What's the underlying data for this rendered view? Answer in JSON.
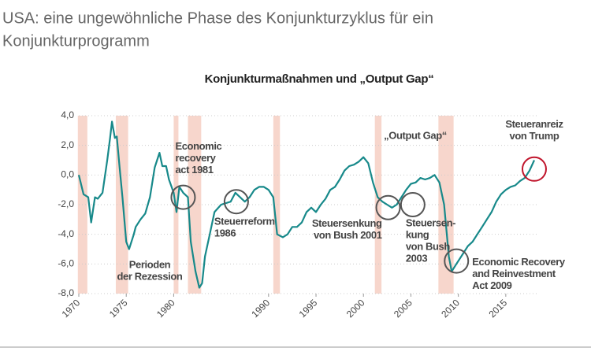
{
  "header": {
    "title": [
      "USA: eine ungewöhnliche Phase des Konjunkturzyklus für ein",
      "Konjunkturprogramm"
    ]
  },
  "chart_data": {
    "type": "line",
    "title": "Konjunkturmaßnahmen und „Output Gap“",
    "color": "#17898a",
    "x": [
      1970.0,
      1970.5,
      1971.0,
      1971.3,
      1971.7,
      1972.0,
      1972.5,
      1973.0,
      1973.3,
      1973.5,
      1973.8,
      1974.0,
      1974.3,
      1974.6,
      1975.0,
      1975.3,
      1975.8,
      1976.0,
      1976.5,
      1977.0,
      1977.5,
      1978.0,
      1978.5,
      1978.8,
      1979.2,
      1979.5,
      1980.0,
      1980.3,
      1980.6,
      1981.0,
      1981.5,
      1981.8,
      1982.3,
      1982.7,
      1983.0,
      1983.3,
      1983.8,
      1984.3,
      1985.0,
      1986.0,
      1986.5,
      1987.0,
      1987.5,
      1988.0,
      1988.5,
      1989.0,
      1989.5,
      1990.0,
      1990.5,
      1990.9,
      1991.5,
      1992.0,
      1992.5,
      1993.0,
      1993.5,
      1994.0,
      1994.5,
      1995.0,
      1995.5,
      1996.0,
      1996.5,
      1997.0,
      1997.5,
      1998.0,
      1998.5,
      1999.0,
      1999.5,
      2000.0,
      2000.5,
      2001.0,
      2001.5,
      2002.0,
      2002.5,
      2003.0,
      2003.5,
      2004.0,
      2004.5,
      2005.0,
      2005.5,
      2006.0,
      2006.5,
      2007.0,
      2007.5,
      2008.0,
      2008.5,
      2009.0,
      2009.3,
      2009.8,
      2010.5,
      2011.0,
      2011.5,
      2012.0,
      2012.5,
      2013.0,
      2013.5,
      2014.0,
      2014.5,
      2015.0,
      2015.5,
      2016.0,
      2016.5,
      2017.0,
      2017.5,
      2018.0
    ],
    "values": [
      0.0,
      -1.3,
      -1.5,
      -3.2,
      -1.5,
      -1.6,
      -1.2,
      1.0,
      2.5,
      3.6,
      2.5,
      2.6,
      0.5,
      -1.5,
      -4.5,
      -5.0,
      -4.0,
      -3.5,
      -3.0,
      -2.6,
      -1.5,
      0.5,
      1.5,
      0.6,
      0.6,
      -0.3,
      -1.2,
      -2.5,
      -0.8,
      -1.2,
      -1.5,
      -4.5,
      -6.5,
      -7.6,
      -7.3,
      -5.5,
      -4.0,
      -2.5,
      -2.0,
      -1.8,
      -1.2,
      -1.5,
      -1.8,
      -1.5,
      -1.0,
      -0.8,
      -0.8,
      -1.0,
      -1.5,
      -4.0,
      -4.2,
      -4.0,
      -3.5,
      -3.5,
      -3.2,
      -2.5,
      -2.2,
      -2.5,
      -2.0,
      -1.6,
      -1.0,
      -0.8,
      -0.3,
      0.3,
      0.6,
      0.7,
      0.9,
      1.2,
      0.8,
      -0.5,
      -1.5,
      -1.8,
      -2.0,
      -2.2,
      -2.0,
      -1.5,
      -1.0,
      -0.6,
      -0.5,
      -0.2,
      -0.3,
      -0.2,
      0.0,
      -0.5,
      -2.0,
      -5.5,
      -6.5,
      -6.0,
      -5.3,
      -4.8,
      -4.5,
      -4.0,
      -3.5,
      -3.0,
      -2.5,
      -1.8,
      -1.3,
      -1.0,
      -0.8,
      -0.7,
      -0.4,
      -0.2,
      0.3,
      1.0
    ],
    "xlim": [
      1970,
      2018.5
    ],
    "xticks": [
      1970,
      1975,
      1980,
      1990,
      1995,
      2000,
      2005,
      2010,
      2015
    ],
    "ylim": [
      -8,
      4
    ],
    "yticks": [
      {
        "value": 4,
        "label": "4,0"
      },
      {
        "value": 2,
        "label": "2,0"
      },
      {
        "value": 0,
        "label": "0,0"
      },
      {
        "value": -2,
        "label": "-2,0"
      },
      {
        "value": -4,
        "label": "-4,0"
      },
      {
        "value": -6,
        "label": "-6,0"
      },
      {
        "value": -8,
        "label": "-8,0"
      }
    ],
    "grid": true,
    "recession_color": "#f7d6cc",
    "recessions": [
      [
        1969.9,
        1970.9
      ],
      [
        1973.9,
        1975.2
      ],
      [
        1980.0,
        1980.5
      ],
      [
        1981.5,
        1982.9
      ],
      [
        1990.5,
        1991.2
      ],
      [
        2001.2,
        2001.9
      ],
      [
        2007.9,
        2009.5
      ]
    ],
    "recession_label": [
      "Perioden",
      "der Rezession"
    ],
    "output_gap_label": "„Output Gap“",
    "annotations": [
      {
        "text": [
          "Economic",
          "recovery",
          "act 1981"
        ],
        "x": 1981.0,
        "y": -1.5
      },
      {
        "text": [
          "Steuerreform",
          "1986"
        ],
        "x": 1986.6,
        "y": -1.8
      },
      {
        "text": [
          "Steuersenkung",
          "von Bush 2001"
        ],
        "x": 2002.6,
        "y": -2.2
      },
      {
        "text": [
          "Steuersen-",
          "kung",
          "von Bush",
          "2003"
        ],
        "x": 2005.2,
        "y": -2.0
      },
      {
        "text": [
          "Economic Recovery",
          "and Reinvestment",
          "Act 2009"
        ],
        "x": 2009.8,
        "y": -5.8
      },
      {
        "text": [
          "Steueranreiz",
          "von Trump"
        ],
        "x": 2018.0,
        "y": 0.4,
        "color": "#c0142b"
      }
    ]
  }
}
